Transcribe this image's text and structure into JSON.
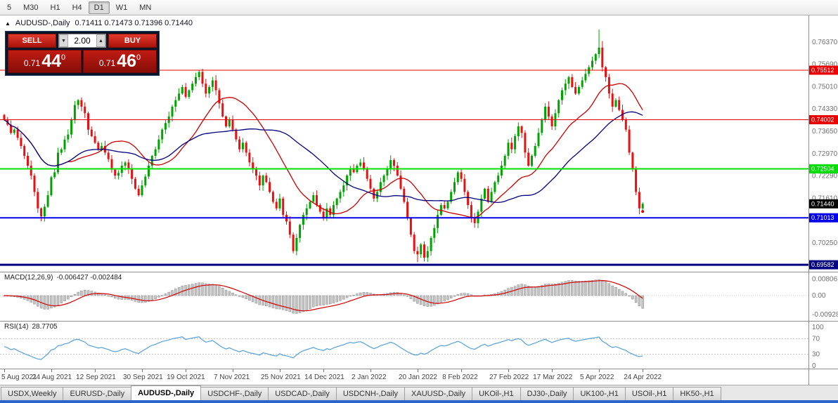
{
  "toolbar": {
    "timeframes": [
      {
        "label": "5",
        "active": false
      },
      {
        "label": "M30",
        "active": false
      },
      {
        "label": "H1",
        "active": false
      },
      {
        "label": "H4",
        "active": false
      },
      {
        "label": "D1",
        "active": true
      },
      {
        "label": "W1",
        "active": false
      },
      {
        "label": "MN",
        "active": false
      }
    ]
  },
  "chart_header": {
    "collapse_icon": "▲",
    "symbol": "AUDUSD-,Daily",
    "ohlc": "0.71411 0.71473 0.71396 0.71440"
  },
  "trade_panel": {
    "sell_label": "SELL",
    "buy_label": "BUY",
    "volume": "2.00",
    "sell_price_small": "0.71",
    "sell_price_big": "44",
    "sell_price_sup": "0",
    "buy_price_small": "0.71",
    "buy_price_big": "46",
    "buy_price_sup": "0"
  },
  "chart_data": {
    "type": "candlestick",
    "symbol": "AUDUSD-,Daily",
    "price_range": [
      0.6937,
      0.7718
    ],
    "y_axis_labels": [
      0.7637,
      0.7569,
      0.7501,
      0.7433,
      0.7365,
      0.7297,
      0.7229,
      0.7161,
      0.7025
    ],
    "price_lines": [
      {
        "price": 0.75512,
        "color": "#e80000",
        "width": 1
      },
      {
        "price": 0.74002,
        "color": "#e80000",
        "width": 1
      },
      {
        "price": 0.72504,
        "color": "#00dd00",
        "width": 2
      },
      {
        "price": 0.71013,
        "color": "#0000e8",
        "width": 2
      },
      {
        "price": 0.69582,
        "color": "#000080",
        "width": 3
      }
    ],
    "current_price": {
      "price": 0.7144,
      "box_color": "#000000"
    },
    "closes": [
      0.74,
      0.7385,
      0.736,
      0.737,
      0.7345,
      0.732,
      0.729,
      0.726,
      0.723,
      0.718,
      0.713,
      0.7106,
      0.7135,
      0.717,
      0.7225,
      0.724,
      0.73,
      0.731,
      0.734,
      0.7355,
      0.74,
      0.7445,
      0.746,
      0.744,
      0.742,
      0.737,
      0.735,
      0.733,
      0.731,
      0.732,
      0.73,
      0.728,
      0.7248,
      0.723,
      0.7238,
      0.726,
      0.727,
      0.725,
      0.722,
      0.719,
      0.717,
      0.72,
      0.7227,
      0.726,
      0.729,
      0.731,
      0.734,
      0.737,
      0.739,
      0.741,
      0.744,
      0.746,
      0.748,
      0.75,
      0.747,
      0.749,
      0.751,
      0.753,
      0.7546,
      0.751,
      0.748,
      0.75,
      0.752,
      0.749,
      0.745,
      0.741,
      0.738,
      0.74,
      0.737,
      0.734,
      0.731,
      0.733,
      0.73,
      0.727,
      0.725,
      0.723,
      0.72,
      0.723,
      0.721,
      0.718,
      0.715,
      0.713,
      0.716,
      0.711,
      0.709,
      0.705,
      0.7,
      0.704,
      0.708,
      0.711,
      0.713,
      0.715,
      0.717,
      0.714,
      0.712,
      0.71,
      0.713,
      0.711,
      0.714,
      0.716,
      0.718,
      0.72,
      0.723,
      0.725,
      0.724,
      0.726,
      0.727,
      0.725,
      0.722,
      0.719,
      0.716,
      0.718,
      0.721,
      0.723,
      0.725,
      0.7277,
      0.726,
      0.723,
      0.719,
      0.715,
      0.71,
      0.705,
      0.7,
      0.699,
      0.702,
      0.698,
      0.7,
      0.704,
      0.707,
      0.711,
      0.714,
      0.713,
      0.715,
      0.718,
      0.721,
      0.724,
      0.722,
      0.718,
      0.714,
      0.71,
      0.7085,
      0.712,
      0.716,
      0.719,
      0.715,
      0.718,
      0.721,
      0.723,
      0.726,
      0.729,
      0.733,
      0.731,
      0.735,
      0.738,
      0.736,
      0.73,
      0.726,
      0.729,
      0.732,
      0.736,
      0.74,
      0.744,
      0.741,
      0.738,
      0.742,
      0.746,
      0.749,
      0.751,
      0.753,
      0.75,
      0.748,
      0.75,
      0.752,
      0.754,
      0.756,
      0.758,
      0.76,
      0.762,
      0.756,
      0.753,
      0.748,
      0.744,
      0.746,
      0.743,
      0.74,
      0.737,
      0.73,
      0.725,
      0.718,
      0.713,
      0.7144
    ],
    "wick_overrides": {
      "86": {
        "low": 0.6993
      },
      "123": {
        "low": 0.6966
      },
      "177": {
        "high": 0.7675
      },
      "178": {
        "high": 0.764
      },
      "189": {
        "low": 0.7112
      }
    },
    "moving_averages": [
      {
        "period": 20,
        "color": "#cc0000"
      },
      {
        "period": 40,
        "color": "#00007f"
      }
    ],
    "date_labels": [
      {
        "label": "5 Aug 2021",
        "index": 0
      },
      {
        "label": "24 Aug 2021",
        "index": 14
      },
      {
        "label": "12 Sep 2021",
        "index": 27
      },
      {
        "label": "30 Sep 2021",
        "index": 41
      },
      {
        "label": "19 Oct 2021",
        "index": 54
      },
      {
        "label": "7 Nov 2021",
        "index": 68
      },
      {
        "label": "25 Nov 2021",
        "index": 82
      },
      {
        "label": "14 Dec 2021",
        "index": 95
      },
      {
        "label": "2 Jan 2022",
        "index": 109
      },
      {
        "label": "20 Jan 2022",
        "index": 123
      },
      {
        "label": "8 Feb 2022",
        "index": 136
      },
      {
        "label": "27 Feb 2022",
        "index": 150
      },
      {
        "label": "17 Mar 2022",
        "index": 163
      },
      {
        "label": "5 Apr 2022",
        "index": 177
      },
      {
        "label": "24 Apr 2022",
        "index": 190
      }
    ],
    "macd": {
      "label": "MACD(12,26,9)",
      "values": "-0.006427 -0.002484",
      "fast": 12,
      "slow": 26,
      "signal": 9,
      "axis": [
        {
          "text": "0.008061",
          "value": 0.008061
        },
        {
          "text": "0.00",
          "value": 0
        },
        {
          "text": "-0.00928",
          "value": -0.00928
        }
      ]
    },
    "rsi": {
      "label": "RSI(14)",
      "value": "28.7705",
      "period": 14,
      "levels": [
        70,
        30
      ],
      "axis": [
        {
          "text": "100",
          "value": 100
        },
        {
          "text": "70",
          "value": 70
        },
        {
          "text": "30",
          "value": 30
        },
        {
          "text": "0",
          "value": 0
        }
      ]
    },
    "colors": {
      "bull": "#00a400",
      "bear": "#e81010",
      "axis_text": "#6f6f6f",
      "hist_fill": "#c4c4c4",
      "hist_stroke": "#8c8c8c",
      "signal_line": "#d40000",
      "rsi_line": "#56a0d8",
      "dotted_level": "#c8c8c8",
      "marker_dot": "#e00000"
    }
  },
  "tabs": {
    "items": [
      {
        "label": "USDX,Weekly",
        "active": false
      },
      {
        "label": "EURUSD-,Daily",
        "active": false
      },
      {
        "label": "AUDUSD-,Daily",
        "active": true
      },
      {
        "label": "USDCHF-,Daily",
        "active": false
      },
      {
        "label": "USDCAD-,Daily",
        "active": false
      },
      {
        "label": "USDCNH-,Daily",
        "active": false
      },
      {
        "label": "XAUUSD-,Daily",
        "active": false
      },
      {
        "label": "UKOil-,H1",
        "active": false
      },
      {
        "label": "DJ30-,Daily",
        "active": false
      },
      {
        "label": "UK100-,H1",
        "active": false
      },
      {
        "label": "USOil-,H1",
        "active": false
      },
      {
        "label": "HK50-,H1",
        "active": false
      }
    ]
  }
}
